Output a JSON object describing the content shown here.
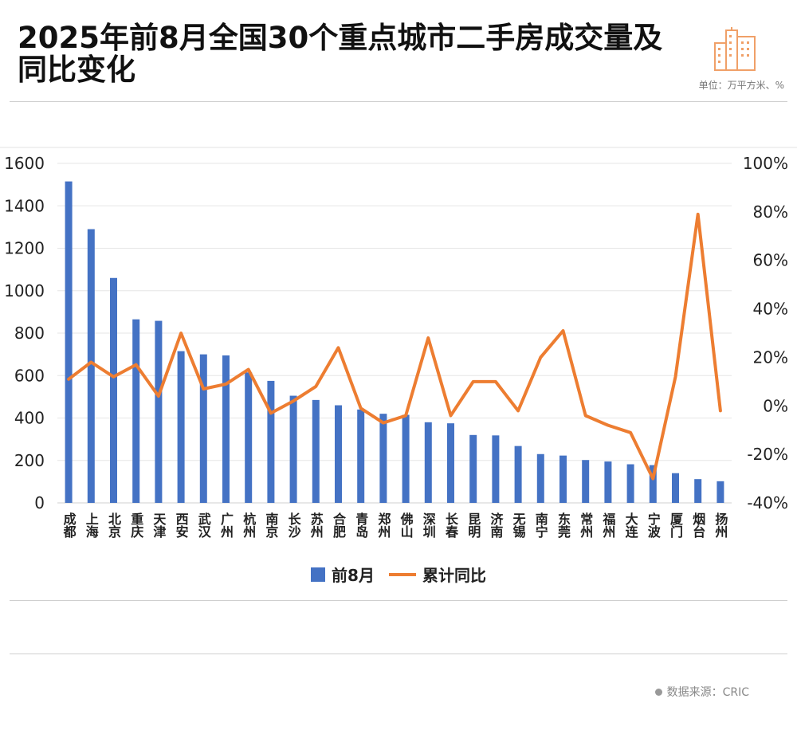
{
  "header": {
    "title": "2025年前8月全国30个重点城市二手房成交量及同比变化",
    "unit": "单位：万平方米、%"
  },
  "footer": {
    "source": "数据来源：CRIC"
  },
  "icons": {
    "logo": "city-buildings-icon"
  },
  "colors": {
    "bar": "#4472c4",
    "line": "#ed7d31",
    "logo": "#f0a068"
  },
  "chart_data": {
    "type": "bar",
    "categories": [
      "成都",
      "上海",
      "北京",
      "重庆",
      "天津",
      "西安",
      "武汉",
      "广州",
      "杭州",
      "南京",
      "长沙",
      "苏州",
      "合肥",
      "青岛",
      "郑州",
      "佛山",
      "深圳",
      "长春",
      "昆明",
      "济南",
      "无锡",
      "南宁",
      "东莞",
      "常州",
      "福州",
      "大连",
      "宁波",
      "厦门",
      "烟台",
      "扬州"
    ],
    "series": [
      {
        "name": "前8月",
        "type": "bar",
        "axis": "left",
        "values": [
          1515,
          1290,
          1060,
          865,
          858,
          715,
          700,
          695,
          615,
          575,
          505,
          485,
          460,
          440,
          420,
          415,
          380,
          375,
          320,
          318,
          268,
          230,
          223,
          202,
          195,
          182,
          178,
          140,
          112,
          102
        ]
      },
      {
        "name": "累计同比",
        "type": "line",
        "axis": "right",
        "values": [
          11,
          18,
          12,
          17,
          4,
          30,
          7,
          9,
          15,
          -3,
          2,
          8,
          24,
          -1,
          -7,
          -4,
          28,
          -4,
          10,
          10,
          -2,
          20,
          31,
          -4,
          -8,
          -11,
          -30,
          12,
          79,
          -2
        ]
      }
    ],
    "y_left": {
      "min": 0,
      "max": 1600,
      "ticks": [
        "0",
        "200",
        "400",
        "600",
        "800",
        "1000",
        "1200",
        "1400",
        "1600"
      ]
    },
    "y_right": {
      "min": -40,
      "max": 100,
      "ticks": [
        "-40%",
        "-20%",
        "0%",
        "20%",
        "40%",
        "60%",
        "80%",
        "100%"
      ]
    },
    "legend": [
      "前8月",
      "累计同比"
    ],
    "legend_position": "bottom",
    "grid": true
  }
}
